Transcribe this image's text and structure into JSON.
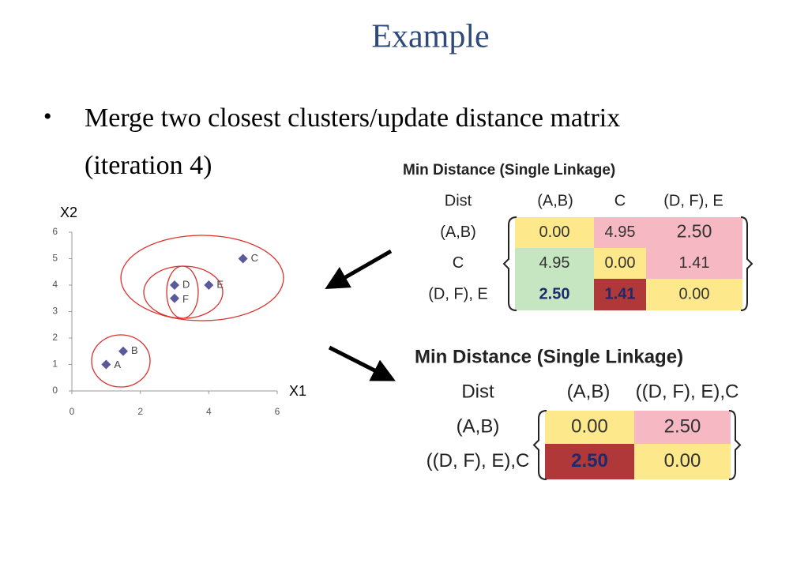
{
  "slide": {
    "title": "Example",
    "bullet_lines": [
      "Merge two closest clusters/update distance matrix",
      "(iteration 4)"
    ]
  },
  "chart_data": {
    "type": "scatter",
    "x": [
      1,
      1.5,
      5,
      3,
      4,
      3
    ],
    "y": [
      1,
      1.5,
      5,
      4,
      4,
      3.5
    ],
    "labels": [
      "A",
      "B",
      "C",
      "D",
      "E",
      "F"
    ],
    "color": "#5a5a9a",
    "xlim": [
      0,
      6
    ],
    "xticks": [
      0,
      2,
      4,
      6
    ],
    "ylim": [
      0,
      6
    ],
    "yticks": [
      0,
      1,
      2,
      3,
      4,
      5,
      6
    ],
    "x_label": "X1",
    "y_label": "X2"
  },
  "tables": [
    {
      "title": "Min Distance (Single Linkage)",
      "header": [
        "Dist",
        "(A,B)",
        "C",
        "(D, F), E"
      ],
      "rows": [
        [
          "(A,B)",
          "0.00",
          "4.95",
          "2.50"
        ],
        [
          "C",
          "4.95",
          "0.00",
          "1.41"
        ],
        [
          "(D, F), E",
          "2.50",
          "1.41",
          "0.00"
        ]
      ]
    },
    {
      "title": "Min Distance (Single Linkage)",
      "header": [
        "Dist",
        "(A,B)",
        "((D, F), E),C"
      ],
      "rows": [
        [
          "(A,B)",
          "0.00",
          "2.50"
        ],
        [
          "((D, F), E),C",
          "2.50",
          "0.00"
        ]
      ]
    }
  ]
}
